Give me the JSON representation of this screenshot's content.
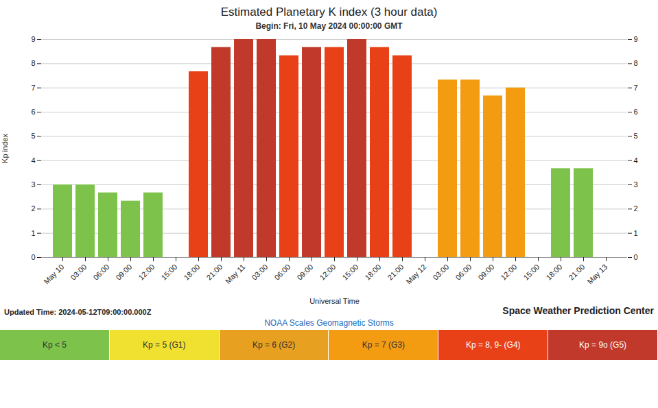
{
  "chart_data": {
    "type": "bar",
    "title": "Estimated Planetary K index (3 hour data)",
    "subtitle": "Begin: Fri, 10 May 2024 00:00:00 GMT",
    "xlabel": "Universal Time",
    "ylabel": "Kp index",
    "categories": [
      "May 10",
      "03:00",
      "06:00",
      "09:00",
      "12:00",
      "15:00",
      "18:00",
      "21:00",
      "May 11",
      "03:00",
      "06:00",
      "09:00",
      "12:00",
      "15:00",
      "18:00",
      "21:00",
      "May 12",
      "03:00",
      "06:00",
      "09:00",
      "12:00",
      "15:00",
      "18:00",
      "21:00",
      "May 13"
    ],
    "series": [
      {
        "name": "Kp < 5",
        "color": "#7dc24b",
        "values": [
          3.0,
          3.0,
          2.67,
          2.33,
          2.67,
          null,
          null,
          null,
          null,
          null,
          null,
          null,
          null,
          null,
          null,
          null,
          null,
          null,
          null,
          null,
          null,
          null,
          3.67,
          3.67,
          null
        ]
      },
      {
        "name": "Kp = 5 (G1)",
        "color": "#f0e030",
        "values": [
          null,
          null,
          null,
          null,
          null,
          null,
          null,
          null,
          null,
          null,
          null,
          null,
          null,
          null,
          null,
          null,
          null,
          null,
          null,
          null,
          null,
          null,
          null,
          null,
          null
        ]
      },
      {
        "name": "Kp = 6 (G2)",
        "color": "#e8a020",
        "values": [
          null,
          null,
          null,
          null,
          null,
          null,
          null,
          null,
          null,
          null,
          null,
          null,
          null,
          null,
          null,
          null,
          null,
          null,
          null,
          null,
          null,
          null,
          null,
          null,
          null
        ]
      },
      {
        "name": "Kp = 7 (G3)",
        "color": "#f39c12",
        "values": [
          null,
          null,
          null,
          null,
          null,
          null,
          null,
          null,
          null,
          null,
          null,
          null,
          null,
          null,
          null,
          null,
          null,
          7.33,
          7.33,
          6.67,
          7.0,
          null,
          null,
          null,
          null
        ]
      },
      {
        "name": "Kp = 8, 9- (G4)",
        "color": "#e84118",
        "values": [
          null,
          null,
          null,
          null,
          null,
          null,
          7.67,
          null,
          null,
          null,
          8.33,
          null,
          8.67,
          null,
          8.67,
          8.33,
          null,
          null,
          null,
          null,
          null,
          null,
          null,
          null,
          null
        ]
      },
      {
        "name": "Kp = 9o (G5)",
        "color": "#c0392b",
        "values": [
          null,
          null,
          null,
          null,
          null,
          null,
          null,
          8.67,
          9.0,
          9.0,
          null,
          8.67,
          null,
          9.0,
          null,
          null,
          null,
          null,
          null,
          null,
          null,
          null,
          null,
          null,
          null
        ]
      }
    ],
    "ylim": [
      0,
      9
    ],
    "yticks": [
      0,
      1,
      2,
      3,
      4,
      5,
      6,
      7,
      8,
      9
    ],
    "grid": true,
    "legend": "bottom",
    "annotations": [
      "Updated Time: 2024-05-12T09:00:00.000Z",
      "Space Weather Prediction Center",
      "NOAA Scales Geomagnetic Storms"
    ]
  }
}
